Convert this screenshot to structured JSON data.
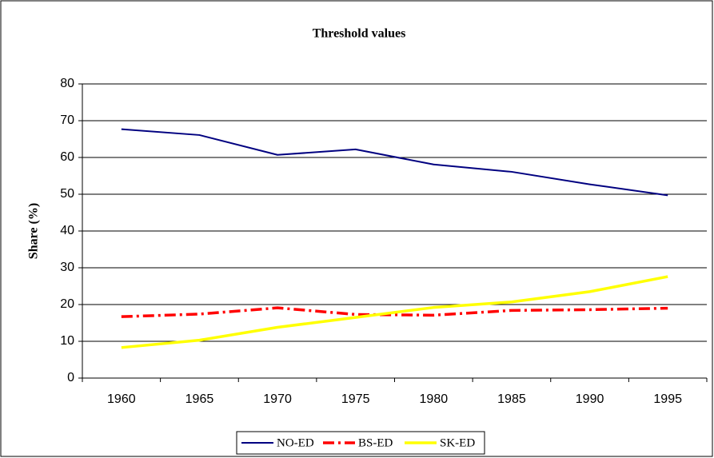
{
  "chart_data": {
    "type": "line",
    "title": "Threshold values",
    "y_label": "Share (%)",
    "categories": [
      "1960",
      "1965",
      "1970",
      "1975",
      "1980",
      "1985",
      "1990",
      "1995"
    ],
    "series": [
      {
        "name": "NO-ED",
        "color": "#000080",
        "style": "solid",
        "values": [
          67.7,
          66.1,
          60.7,
          62.2,
          58.1,
          56.1,
          52.7,
          49.7
        ]
      },
      {
        "name": "BS-ED",
        "color": "#ff0000",
        "style": "dash-dot",
        "values": [
          16.7,
          17.4,
          19.1,
          17.3,
          17.1,
          18.4,
          18.6,
          19.0
        ]
      },
      {
        "name": "SK-ED",
        "color": "#ffff00",
        "style": "solid",
        "values": [
          8.3,
          10.3,
          13.8,
          16.5,
          19.2,
          20.7,
          23.5,
          27.6
        ]
      }
    ],
    "ylim": [
      0,
      80
    ],
    "yticks": [
      0,
      10,
      20,
      30,
      40,
      50,
      60,
      70,
      80
    ],
    "grid": true,
    "legend": "bottom"
  }
}
